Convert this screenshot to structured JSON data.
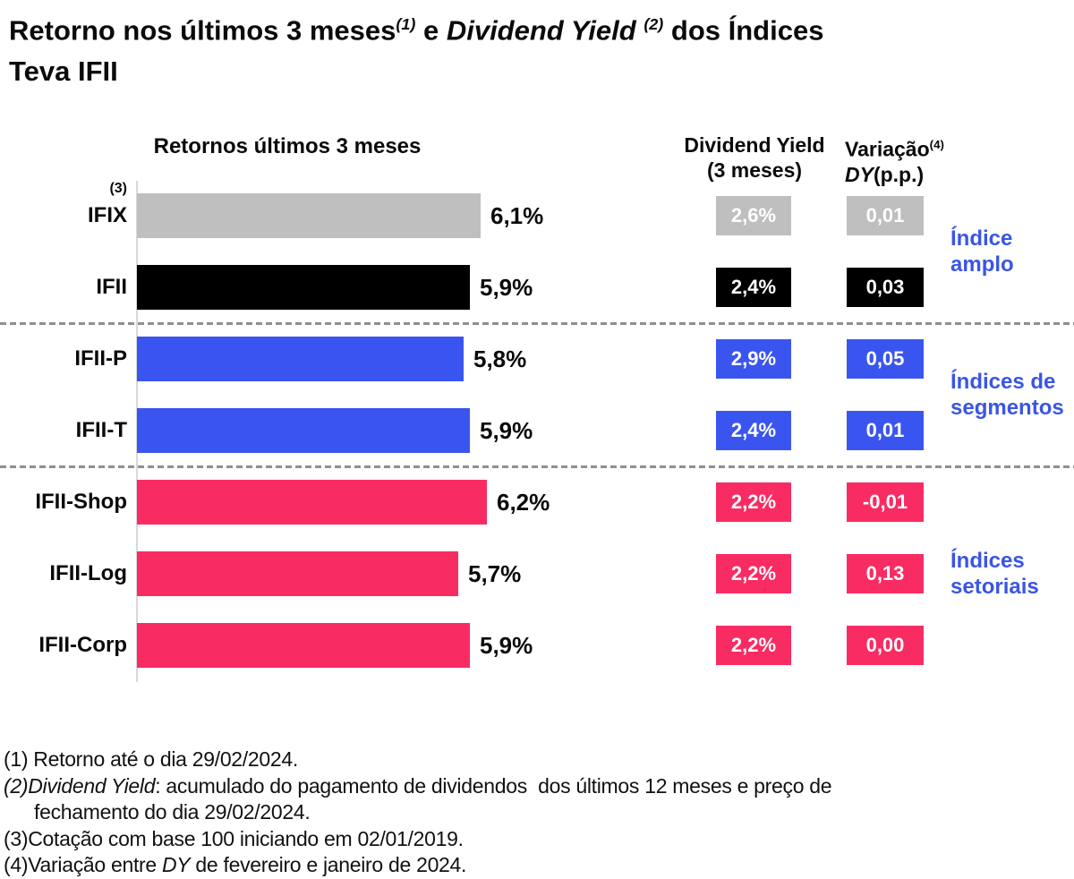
{
  "title": {
    "plain": "Retorno nos últimos 3 meses(1) e Dividend Yield (2) dos Índices Teva IFII",
    "segments": [
      {
        "t": "Retorno nos últimos 3 meses"
      },
      {
        "t": "(1)",
        "i": 1,
        "s": 1
      },
      {
        "t": " e "
      },
      {
        "t": "Dividend Yield ",
        "i": 1
      },
      {
        "t": "(2)",
        "i": 1,
        "s": 1
      },
      {
        "t": " dos Índices",
        "br": 1
      },
      {
        "t": "Teva IFII"
      }
    ]
  },
  "headers": {
    "returns": "Retornos últimos 3 meses",
    "dy_line1": "Dividend Yield",
    "dy_line2": "(3 meses)",
    "variation_lines": [
      [
        {
          "t": "Variação"
        },
        {
          "t": "(4)",
          "s": 1
        }
      ],
      [
        {
          "t": "DY",
          "i": 1
        },
        {
          "t": "(p.p.)"
        }
      ]
    ]
  },
  "colors": {
    "gray": "#bfbfbf",
    "black": "#000000",
    "blue": "#3a55ef",
    "pink": "#f92b63",
    "group_label_blue": "#3a55e6",
    "axis": "#d9d9d9",
    "dash": "#8f8f8f",
    "badge_text": "#ffffff"
  },
  "chart_data": {
    "type": "bar",
    "orientation": "horizontal",
    "title": "Retorno nos últimos 3 meses e Dividend Yield dos Índices Teva IFII",
    "xlabel": "Retornos últimos 3 meses (%)",
    "xlim": [
      0,
      6.5
    ],
    "grid": false,
    "categories": [
      "IFIX",
      "IFII",
      "IFII-P",
      "IFII-T",
      "IFII-Shop",
      "IFII-Log",
      "IFII-Corp"
    ],
    "series": [
      {
        "name": "Retornos últimos 3 meses",
        "unit": "%",
        "values": [
          6.1,
          5.9,
          5.8,
          5.9,
          6.2,
          5.7,
          5.9
        ]
      },
      {
        "name": "Dividend Yield (3 meses)",
        "unit": "%",
        "values": [
          2.6,
          2.4,
          2.9,
          2.4,
          2.2,
          2.2,
          2.2
        ]
      },
      {
        "name": "Variação DY (p.p.)",
        "unit": "p.p.",
        "values": [
          0.01,
          0.03,
          0.05,
          0.01,
          -0.01,
          0.13,
          0.0
        ]
      }
    ],
    "rows": [
      {
        "label": "IFIX",
        "sup": "(3)",
        "value": 6.1,
        "value_label": "6,1%",
        "dy": "2,6%",
        "var": "0,01",
        "color": "#bfbfbf"
      },
      {
        "label": "IFII",
        "value": 5.9,
        "value_label": "5,9%",
        "dy": "2,4%",
        "var": "0,03",
        "color": "#000000"
      },
      {
        "label": "IFII-P",
        "value": 5.8,
        "value_label": "5,8%",
        "dy": "2,9%",
        "var": "0,05",
        "color": "#3a55ef"
      },
      {
        "label": "IFII-T",
        "value": 5.9,
        "value_label": "5,9%",
        "dy": "2,4%",
        "var": "0,01",
        "color": "#3a55ef"
      },
      {
        "label": "IFII-Shop",
        "value": 6.2,
        "value_label": "6,2%",
        "dy": "2,2%",
        "var": "-0,01",
        "color": "#f92b63"
      },
      {
        "label": "IFII-Log",
        "value": 5.7,
        "value_label": "5,7%",
        "dy": "2,2%",
        "var": "0,13",
        "color": "#f92b63"
      },
      {
        "label": "IFII-Corp",
        "value": 5.9,
        "value_label": "5,9%",
        "dy": "2,2%",
        "var": "0,00",
        "color": "#f92b63"
      }
    ],
    "groups": [
      {
        "lines": [
          "Índice",
          "amplo"
        ],
        "from_row": 0,
        "to_row": 1
      },
      {
        "lines": [
          "Índices de",
          "segmentos"
        ],
        "from_row": 2,
        "to_row": 3
      },
      {
        "lines": [
          "Índices",
          "setoriais"
        ],
        "from_row": 4,
        "to_row": 6
      }
    ],
    "separators_after_rows": [
      1,
      3
    ],
    "legend_position": "none"
  },
  "footnotes": [
    {
      "indent": 0,
      "segs": [
        {
          "t": "(1) Retorno até o dia 29/02/2024."
        }
      ]
    },
    {
      "indent": 0,
      "segs": [
        {
          "t": "(2)",
          "i": 1
        },
        {
          "t": "Dividend Yield",
          "i": 1
        },
        {
          "t": ": acumulado do pagamento de dividendos  dos últimos 12 meses e preço de"
        }
      ]
    },
    {
      "indent": 1,
      "segs": [
        {
          "t": "fechamento do dia 29/02/2024."
        }
      ]
    },
    {
      "indent": 0,
      "segs": [
        {
          "t": "(3)Cotação com base 100 iniciando em 02/01/2019."
        }
      ]
    },
    {
      "indent": 0,
      "segs": [
        {
          "t": "(4)Variação entre "
        },
        {
          "t": "DY",
          "i": 1
        },
        {
          "t": " de fevereiro e janeiro de 2024."
        }
      ]
    }
  ]
}
